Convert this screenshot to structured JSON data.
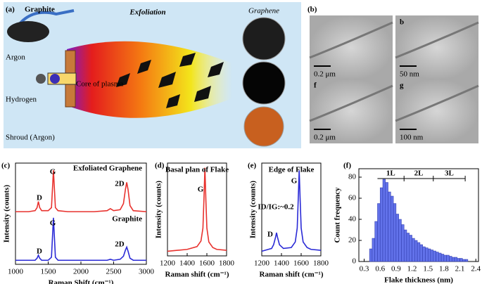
{
  "panel_a": {
    "label": "(a)",
    "title": "Exfoliation",
    "graphite": "Graphite",
    "graphene": "Graphene",
    "argon": "Argon",
    "hydrogen": "Hydrogen",
    "shroud": "Shroud (Argon)",
    "core": "Core of plasma"
  },
  "panel_b": {
    "label": "(b)",
    "images": [
      {
        "scale": "0.2 μm"
      },
      {
        "letter": "b",
        "scale": "50 nm"
      },
      {
        "letter": "f",
        "scale": "0.2 μm"
      },
      {
        "letter": "g",
        "scale": "100 nm"
      }
    ]
  },
  "chart_data": [
    {
      "type": "line",
      "panel_label": "(c)",
      "x_label": "Raman Shift (cm⁻¹)",
      "y_label": "Intensity (counts)",
      "x": [
        1000,
        1100,
        1200,
        1300,
        1330,
        1350,
        1370,
        1400,
        1500,
        1550,
        1580,
        1610,
        1650,
        1800,
        2000,
        2200,
        2400,
        2450,
        2500,
        2600,
        2650,
        2680,
        2700,
        2720,
        2750,
        2800,
        3000
      ],
      "xlim": [
        1000,
        3000
      ],
      "xticks": [
        1000,
        1500,
        2000,
        2500,
        3000
      ],
      "ylim": [
        0,
        100
      ],
      "series": [
        {
          "name": "Exfoliated Graphene",
          "color": "#e8322e",
          "values": [
            52,
            52,
            52,
            53,
            56,
            62,
            56,
            53,
            53,
            56,
            93,
            56,
            53,
            52,
            52,
            52,
            53,
            55,
            53,
            54,
            60,
            74,
            81,
            74,
            58,
            53,
            52
          ]
        },
        {
          "name": "Graphite",
          "color": "#2a2ad6",
          "values": [
            4,
            4,
            4,
            4,
            6,
            9,
            6,
            4,
            4,
            7,
            46,
            7,
            4,
            4,
            4,
            4,
            4,
            5,
            4,
            5,
            8,
            14,
            17,
            13,
            6,
            4,
            4
          ]
        }
      ],
      "annotations": [
        "D",
        "G",
        "2D",
        "D",
        "G",
        "2D"
      ]
    },
    {
      "type": "line",
      "panel_label": "(d)",
      "title": "Basal plan of Flake",
      "x_label": "Raman shift (cm⁻¹)",
      "y_label": "Intensity (counts)",
      "x": [
        1200,
        1300,
        1400,
        1500,
        1540,
        1560,
        1570,
        1580,
        1590,
        1600,
        1620,
        1660,
        1700,
        1800
      ],
      "xlim": [
        1200,
        1800
      ],
      "xticks": [
        1200,
        1400,
        1600,
        1800
      ],
      "ylim": [
        0,
        100
      ],
      "color": "#e8322e",
      "values": [
        5,
        6,
        7,
        10,
        16,
        30,
        60,
        95,
        60,
        30,
        15,
        9,
        7,
        6
      ],
      "annotations": [
        "G"
      ]
    },
    {
      "type": "line",
      "panel_label": "(e)",
      "title": "Edge of Flake",
      "x_label": "Raman shift (cm⁻¹)",
      "y_label": "Intensity (counts)",
      "x": [
        1200,
        1300,
        1320,
        1340,
        1350,
        1360,
        1380,
        1420,
        1500,
        1540,
        1560,
        1570,
        1580,
        1590,
        1600,
        1620,
        1660,
        1700,
        1800
      ],
      "xlim": [
        1200,
        1800
      ],
      "xticks": [
        1200,
        1400,
        1600,
        1800
      ],
      "ylim": [
        0,
        100
      ],
      "color": "#2a2ad6",
      "values": [
        5,
        8,
        12,
        20,
        25,
        20,
        12,
        8,
        9,
        15,
        30,
        60,
        92,
        60,
        30,
        15,
        9,
        7,
        6
      ],
      "annotations": [
        "D",
        "G",
        "ID/IG:~0.2"
      ]
    },
    {
      "type": "histogram",
      "panel_label": "(f)",
      "x_label": "Flake thickness (nm)",
      "y_label": "Count frequency",
      "bins": [
        0.4,
        0.45,
        0.5,
        0.55,
        0.6,
        0.65,
        0.7,
        0.75,
        0.8,
        0.85,
        0.9,
        0.95,
        1,
        1.05,
        1.1,
        1.15,
        1.2,
        1.25,
        1.3,
        1.35,
        1.4,
        1.45,
        1.5,
        1.55,
        1.6,
        1.65,
        1.7,
        1.75,
        1.8,
        1.85,
        1.9,
        1.95,
        2,
        2.05,
        2.1,
        2.15,
        2.2,
        2.25
      ],
      "values": [
        12,
        22,
        38,
        55,
        70,
        78,
        75,
        66,
        62,
        55,
        45,
        40,
        35,
        30,
        27,
        25,
        22,
        20,
        18,
        16,
        14,
        13,
        12,
        11,
        10,
        9,
        8,
        7,
        6,
        6,
        5,
        4,
        4,
        3,
        3,
        2,
        2
      ],
      "color": "#6272ea",
      "xlim": [
        0.2,
        2.45
      ],
      "xticks": [
        0.3,
        0.6,
        0.9,
        1.2,
        1.5,
        1.8,
        2.1,
        2.4
      ],
      "ylim": [
        0,
        88
      ],
      "yticks": [
        0,
        20,
        40,
        60,
        80
      ],
      "ranges": [
        {
          "text": "1L",
          "from": 0.55,
          "to": 1.05
        },
        {
          "text": "2L",
          "from": 1.05,
          "to": 1.6
        },
        {
          "text": "3L",
          "from": 1.6,
          "to": 2.2
        }
      ]
    }
  ]
}
